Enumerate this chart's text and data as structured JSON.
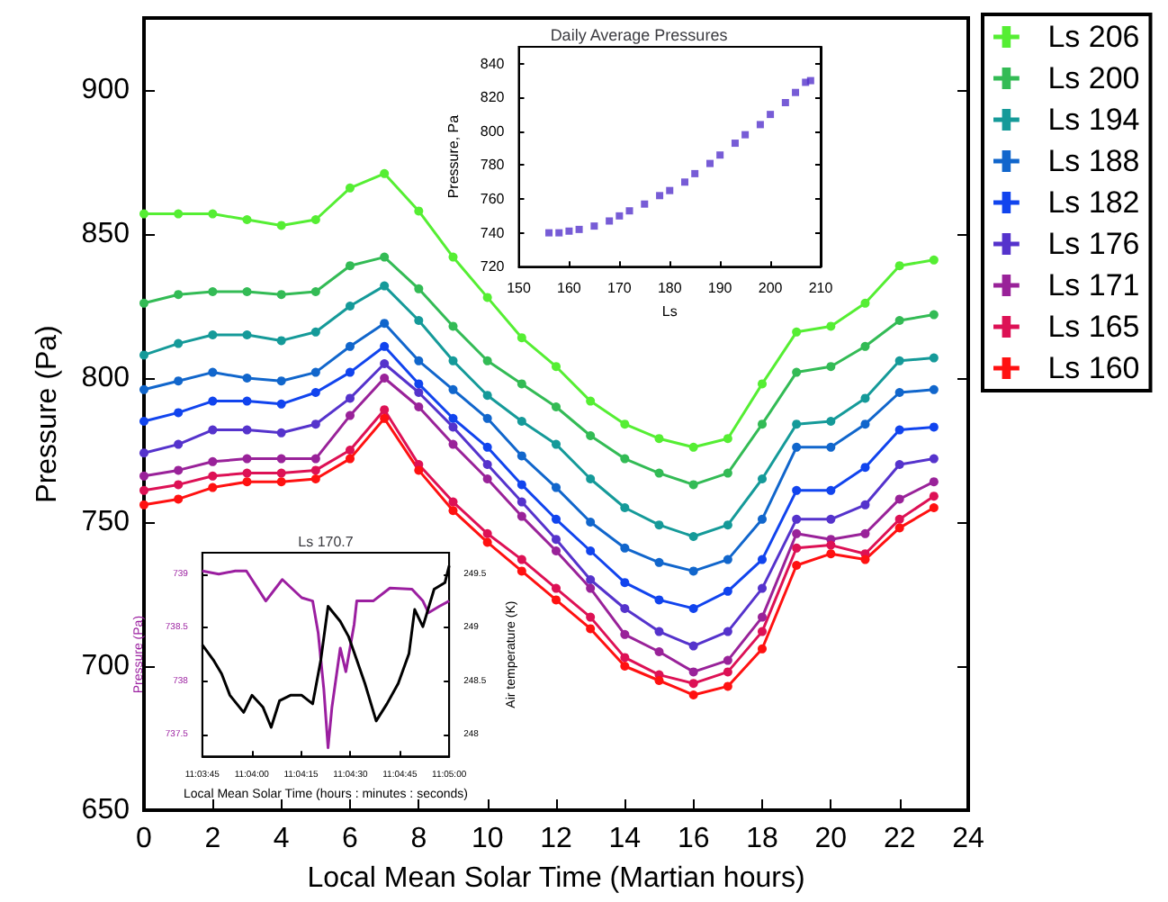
{
  "chart_data": [
    {
      "type": "line",
      "xlabel": "Local Mean Solar Time (Martian hours)",
      "ylabel": "Pressure (Pa)",
      "x": [
        0,
        1,
        2,
        3,
        4,
        5,
        6,
        7,
        8,
        9,
        10,
        11,
        12,
        13,
        14,
        15,
        16,
        17,
        18,
        19,
        20,
        21,
        22,
        23
      ],
      "xlim": [
        0,
        24
      ],
      "xticks": [
        0,
        2,
        4,
        6,
        8,
        10,
        12,
        14,
        16,
        18,
        20,
        22,
        24
      ],
      "ylim": [
        650,
        925
      ],
      "yticks": [
        650,
        700,
        750,
        800,
        850,
        900
      ],
      "legend": "right",
      "marker": "circle",
      "series": [
        {
          "name": "Ls 206",
          "color": "#55ee33",
          "values": [
            857,
            857,
            857,
            855,
            853,
            855,
            866,
            871,
            858,
            842,
            828,
            814,
            804,
            792,
            784,
            779,
            776,
            779,
            798,
            816,
            818,
            826,
            839,
            841
          ]
        },
        {
          "name": "Ls 200",
          "color": "#33bb55",
          "values": [
            826,
            829,
            830,
            830,
            829,
            830,
            839,
            842,
            831,
            818,
            806,
            798,
            790,
            780,
            772,
            767,
            763,
            767,
            784,
            802,
            804,
            811,
            820,
            822
          ]
        },
        {
          "name": "Ls 194",
          "color": "#159a99",
          "values": [
            808,
            812,
            815,
            815,
            813,
            816,
            825,
            832,
            820,
            806,
            794,
            785,
            777,
            765,
            755,
            749,
            745,
            749,
            765,
            784,
            785,
            793,
            806,
            807
          ]
        },
        {
          "name": "Ls 188",
          "color": "#1166cc",
          "values": [
            796,
            799,
            802,
            800,
            799,
            802,
            811,
            819,
            806,
            796,
            786,
            773,
            762,
            750,
            741,
            736,
            733,
            737,
            751,
            776,
            776,
            784,
            795,
            796
          ]
        },
        {
          "name": "Ls 182",
          "color": "#1144ee",
          "values": [
            785,
            788,
            792,
            792,
            791,
            795,
            802,
            811,
            798,
            786,
            776,
            763,
            751,
            740,
            729,
            723,
            720,
            726,
            737,
            761,
            761,
            769,
            782,
            783
          ]
        },
        {
          "name": "Ls 176",
          "color": "#5533cc",
          "values": [
            774,
            777,
            782,
            782,
            781,
            784,
            793,
            805,
            795,
            783,
            770,
            757,
            744,
            730,
            720,
            712,
            707,
            712,
            727,
            751,
            751,
            756,
            770,
            772
          ]
        },
        {
          "name": "Ls 171",
          "color": "#992299",
          "values": [
            766,
            768,
            771,
            772,
            772,
            772,
            787,
            800,
            790,
            777,
            765,
            752,
            740,
            727,
            711,
            705,
            698,
            702,
            717,
            746,
            744,
            746,
            758,
            764
          ]
        },
        {
          "name": "Ls 165",
          "color": "#dd1155",
          "values": [
            761,
            763,
            766,
            767,
            767,
            768,
            775,
            789,
            770,
            757,
            746,
            737,
            727,
            717,
            703,
            697,
            694,
            698,
            712,
            741,
            742,
            739,
            751,
            759
          ]
        },
        {
          "name": "Ls 160",
          "color": "#ff1111",
          "values": [
            756,
            758,
            762,
            764,
            764,
            765,
            772,
            786,
            768,
            754,
            743,
            733,
            723,
            713,
            700,
            695,
            690,
            693,
            706,
            735,
            739,
            737,
            748,
            755
          ]
        }
      ]
    },
    {
      "type": "scatter",
      "title": "Daily Average Pressures",
      "xlabel": "Ls",
      "ylabel": "Pressure, Pa",
      "x": [
        156,
        158,
        160,
        162,
        165,
        168,
        170,
        172,
        175,
        178,
        180,
        183,
        185,
        188,
        190,
        193,
        195,
        198,
        200,
        203,
        205,
        207,
        208
      ],
      "xlim": [
        150,
        210
      ],
      "xticks": [
        150,
        160,
        170,
        180,
        190,
        200,
        210
      ],
      "ylim": [
        720,
        850
      ],
      "yticks": [
        720,
        740,
        760,
        780,
        800,
        820,
        840
      ],
      "marker": "square",
      "series": [
        {
          "color": "#5533cc",
          "values": [
            740,
            740,
            741,
            742,
            744,
            747,
            750,
            753,
            757,
            762,
            765,
            770,
            775,
            781,
            786,
            793,
            798,
            804,
            810,
            817,
            823,
            829,
            830
          ]
        }
      ]
    },
    {
      "type": "line",
      "title": "Ls 170.7",
      "xlabel": "Local Mean Solar Time (hours : minutes : seconds)",
      "ylabel": "Pressure (Pa)",
      "y2label": "Air temperature (K)",
      "xlim": [
        11.0625,
        11.08333
      ],
      "xticks": [
        {
          "value": 11.0625,
          "label": "11:03:45"
        },
        {
          "value": 11.06667,
          "label": "11:04:00"
        },
        {
          "value": 11.07083,
          "label": "11:04:15"
        },
        {
          "value": 11.075,
          "label": "11:04:30"
        },
        {
          "value": 11.07917,
          "label": "11:04:45"
        },
        {
          "value": 11.08333,
          "label": "11:05:00"
        }
      ],
      "ylim": [
        737.3,
        739.2
      ],
      "yticks": [
        737.5,
        738,
        738.5,
        739
      ],
      "y2lim": [
        247.8,
        249.7
      ],
      "y2ticks": [
        248,
        248.5,
        249,
        249.5
      ],
      "marker": "none",
      "series": [
        {
          "color": "#9b1fa0",
          "x": [
            11.0625,
            11.06389,
            11.06528,
            11.06622,
            11.06786,
            11.06925,
            11.07089,
            11.07181,
            11.07228,
            11.07275,
            11.07311,
            11.07344,
            11.07414,
            11.07461,
            11.07531,
            11.07553,
            11.07692,
            11.07833,
            11.08019,
            11.08111,
            11.08158,
            11.0825,
            11.08333
          ],
          "values": [
            739.03,
            739.0,
            739.03,
            739.03,
            738.75,
            738.95,
            738.78,
            738.75,
            738.45,
            737.93,
            737.38,
            737.76,
            738.31,
            738.09,
            738.53,
            738.75,
            738.75,
            738.87,
            738.86,
            738.75,
            738.64,
            738.7,
            738.75
          ]
        },
        {
          "color": "#000000",
          "axis": "y2",
          "x": [
            11.0625,
            11.06343,
            11.06413,
            11.06483,
            11.06599,
            11.06669,
            11.06761,
            11.06831,
            11.06902,
            11.06994,
            11.07089,
            11.07181,
            11.0725,
            11.07311,
            11.07414,
            11.07483,
            11.07553,
            11.07622,
            11.07717,
            11.07808,
            11.07903,
            11.07994,
            11.08042,
            11.08111,
            11.08206,
            11.08297,
            11.08333
          ],
          "values": [
            248.84,
            248.7,
            248.57,
            248.37,
            248.21,
            248.37,
            248.26,
            248.07,
            248.32,
            248.37,
            248.37,
            248.29,
            248.7,
            249.2,
            249.06,
            248.92,
            248.7,
            248.48,
            248.13,
            248.29,
            248.48,
            248.76,
            249.17,
            249.01,
            249.36,
            249.42,
            249.58
          ]
        }
      ]
    }
  ]
}
